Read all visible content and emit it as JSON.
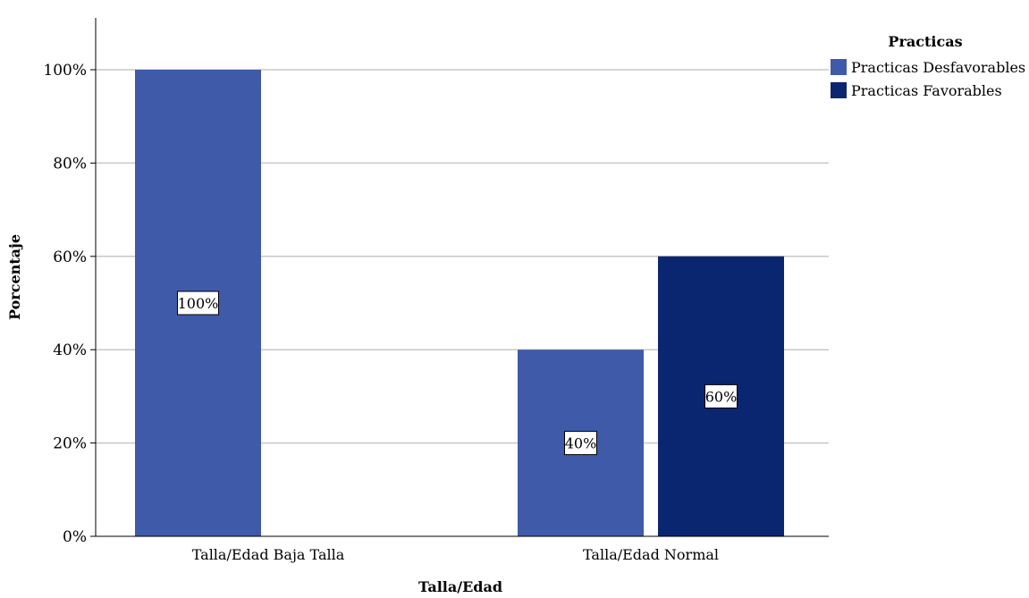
{
  "chart_data": {
    "type": "bar",
    "categories": [
      "Talla/Edad Baja Talla",
      "Talla/Edad Normal"
    ],
    "series": [
      {
        "name": "Practicas Desfavorables",
        "values": [
          100,
          40
        ],
        "color": "#3f5aa8"
      },
      {
        "name": "Practicas Favorables",
        "values": [
          0,
          60
        ],
        "color": "#0b2670"
      }
    ],
    "data_labels": [
      [
        "100%",
        "40%"
      ],
      [
        "",
        "60%"
      ]
    ],
    "xlabel": "Talla/Edad",
    "ylabel": "Porcentaje",
    "ylim": [
      0,
      100
    ],
    "yticks": [
      0,
      20,
      40,
      60,
      80,
      100
    ],
    "ytick_labels": [
      "0%",
      "20%",
      "40%",
      "60%",
      "80%",
      "100%"
    ],
    "legend_title": "Practicas",
    "legend_position": "top-right",
    "grid": true
  }
}
